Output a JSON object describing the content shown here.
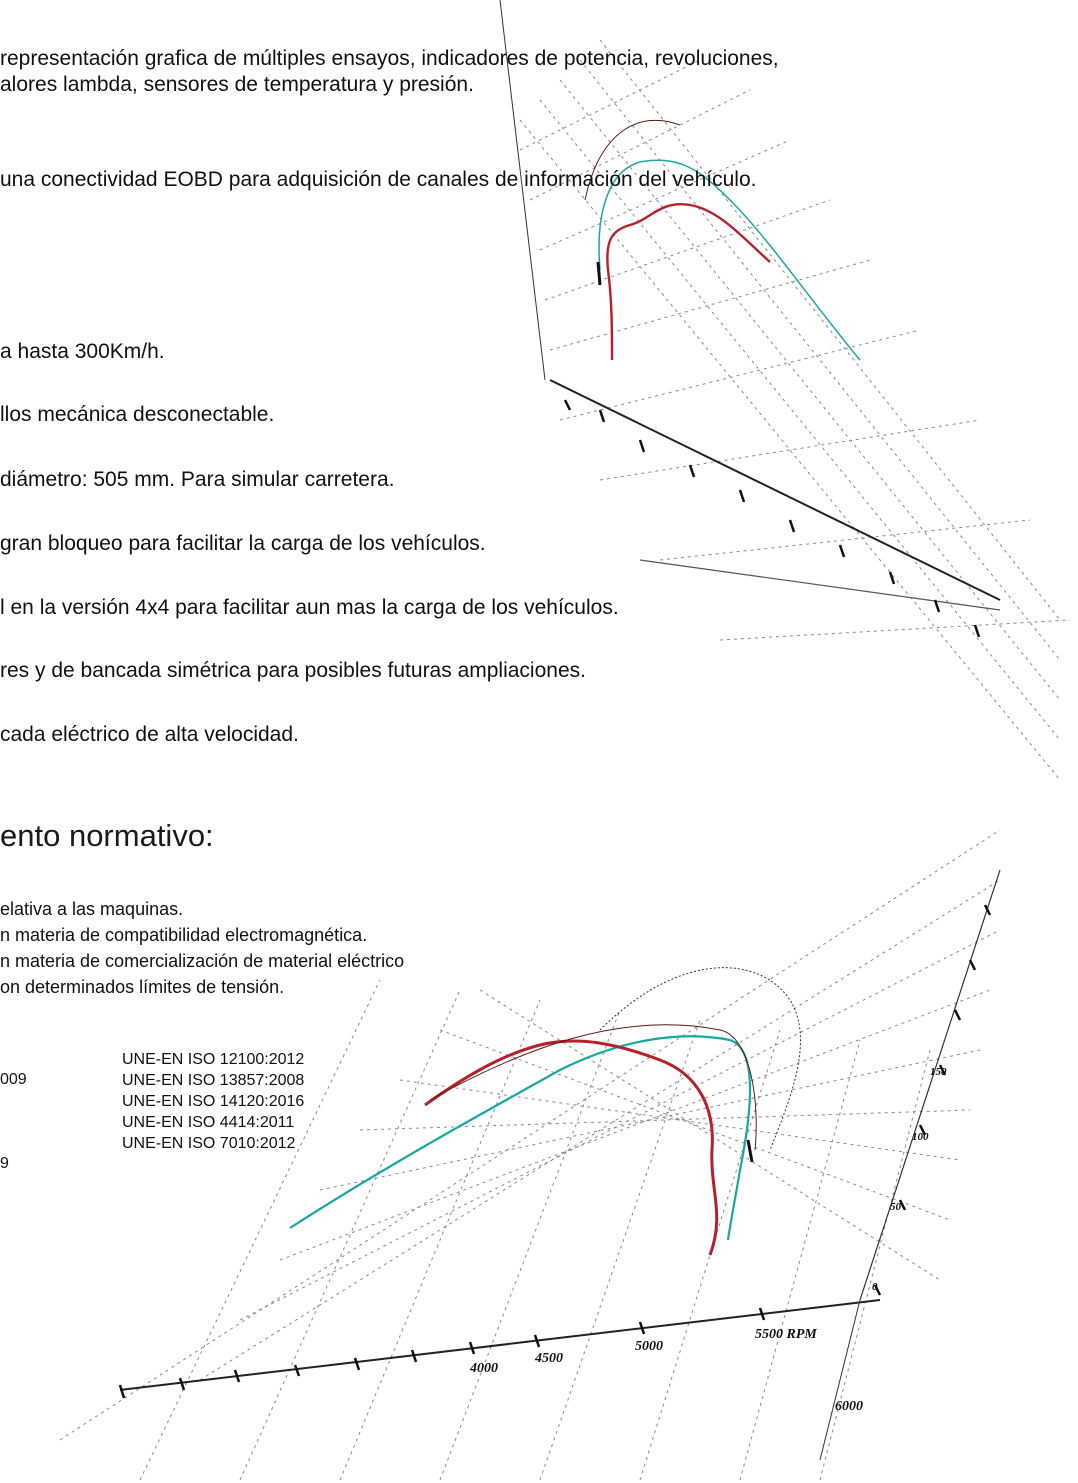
{
  "paragraphs": [
    "representación grafica de múltiples ensayos, indicadores de potencia, revoluciones,",
    "alores lambda, sensores de temperatura y presión.",
    "una conectividad EOBD para adquisición de canales de información del vehículo."
  ],
  "features": [
    "a hasta 300Km/h.",
    "llos mecánica desconectable.",
    "diámetro: 505 mm. Para simular carretera.",
    "gran bloqueo para facilitar la carga de los vehículos.",
    "l en la versión 4x4 para facilitar aun mas la carga de los vehículos.",
    "res y de bancada simétrica para posibles futuras ampliaciones.",
    "cada eléctrico de alta velocidad."
  ],
  "normative": {
    "heading": "ento normativo:",
    "directives": [
      "elativa a las maquinas.",
      "n materia de compatibilidad electromagnética.",
      "n materia de comercialización de material eléctrico",
      "on determinados límites de tensión."
    ],
    "left_column": [
      "",
      "009",
      "",
      "",
      "9"
    ],
    "standards": [
      "UNE-EN ISO 12100:2012",
      "UNE-EN ISO 13857:2008",
      "UNE-EN ISO 14120:2016",
      "UNE-EN ISO 4414:2011",
      "UNE-EN ISO 7010:2012"
    ]
  },
  "background_chart": {
    "x_ticks": [
      "4000",
      "4500",
      "5000",
      "5500 RPM",
      "6000"
    ],
    "y_ticks": [
      "0",
      "50",
      "100",
      "150"
    ],
    "series_colors": [
      "#b5202a",
      "#1aa7a0",
      "#5a1a1a"
    ]
  }
}
